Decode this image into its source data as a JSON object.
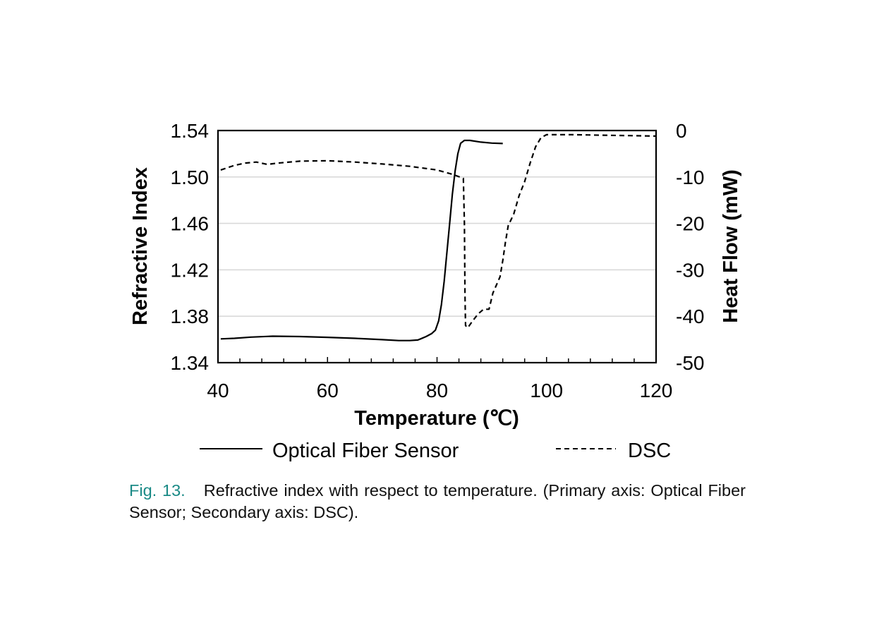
{
  "chart_data": {
    "type": "line",
    "title": "",
    "xlabel": "Temperature (℃)",
    "ylabel": "Refractive Index",
    "y2label": "Heat Flow (mW)",
    "xlim": [
      40,
      120
    ],
    "ylim": [
      1.34,
      1.54
    ],
    "y2lim": [
      -50,
      0
    ],
    "x_ticks": [
      "40",
      "60",
      "80",
      "100",
      "120"
    ],
    "y_ticks": [
      "1.34",
      "1.38",
      "1.42",
      "1.46",
      "1.50",
      "1.54"
    ],
    "y2_ticks": [
      "-50",
      "-40",
      "-30",
      "-20",
      "-10",
      "0"
    ],
    "grid": "horizontal",
    "legend_position": "bottom",
    "series": [
      {
        "name": "Optical Fiber Sensor",
        "axis": "primary",
        "style": "solid",
        "color": "#000000",
        "points": [
          [
            40.5,
            1.3605
          ],
          [
            43,
            1.361
          ],
          [
            46,
            1.362
          ],
          [
            50,
            1.3628
          ],
          [
            55,
            1.3625
          ],
          [
            60,
            1.3618
          ],
          [
            65,
            1.361
          ],
          [
            70,
            1.3598
          ],
          [
            73,
            1.359
          ],
          [
            75,
            1.359
          ],
          [
            76.5,
            1.3595
          ],
          [
            77,
            1.3605
          ],
          [
            78,
            1.3625
          ],
          [
            79,
            1.365
          ],
          [
            79.7,
            1.368
          ],
          [
            80.3,
            1.376
          ],
          [
            80.8,
            1.39
          ],
          [
            81.3,
            1.41
          ],
          [
            81.8,
            1.435
          ],
          [
            82.3,
            1.46
          ],
          [
            82.8,
            1.485
          ],
          [
            83.3,
            1.505
          ],
          [
            83.8,
            1.52
          ],
          [
            84.3,
            1.529
          ],
          [
            85,
            1.5315
          ],
          [
            86,
            1.5315
          ],
          [
            88,
            1.53
          ],
          [
            90,
            1.5292
          ],
          [
            92,
            1.5288
          ]
        ]
      },
      {
        "name": "DSC",
        "axis": "secondary",
        "style": "dashed",
        "color": "#000000",
        "points": [
          [
            40.5,
            -8.5
          ],
          [
            43,
            -7.5
          ],
          [
            45,
            -7
          ],
          [
            47,
            -6.8
          ],
          [
            49,
            -7.3
          ],
          [
            51,
            -7
          ],
          [
            55,
            -6.6
          ],
          [
            60,
            -6.5
          ],
          [
            65,
            -6.8
          ],
          [
            70,
            -7.2
          ],
          [
            75,
            -7.7
          ],
          [
            80,
            -8.5
          ],
          [
            83,
            -9.5
          ],
          [
            84.8,
            -10.3
          ],
          [
            85,
            -20
          ],
          [
            85.1,
            -35
          ],
          [
            85.2,
            -42
          ],
          [
            85.6,
            -42.5
          ],
          [
            86.5,
            -41
          ],
          [
            87.5,
            -39.5
          ],
          [
            88.5,
            -38.5
          ],
          [
            89.5,
            -38.5
          ],
          [
            90.2,
            -35
          ],
          [
            91.5,
            -31.5
          ],
          [
            92,
            -28
          ],
          [
            92.5,
            -24
          ],
          [
            93,
            -20.5
          ],
          [
            94,
            -18
          ],
          [
            95,
            -14
          ],
          [
            96,
            -11
          ],
          [
            97,
            -7
          ],
          [
            98,
            -3.5
          ],
          [
            99,
            -1.5
          ],
          [
            100,
            -0.9
          ],
          [
            105,
            -0.9
          ],
          [
            110,
            -1
          ],
          [
            115,
            -1.1
          ],
          [
            120,
            -1.2
          ]
        ]
      }
    ]
  },
  "caption": {
    "label": "Fig. 13.",
    "text": "Refractive index with respect to temperature. (Primary axis: Optical Fiber Sensor; Secondary axis: DSC)."
  }
}
